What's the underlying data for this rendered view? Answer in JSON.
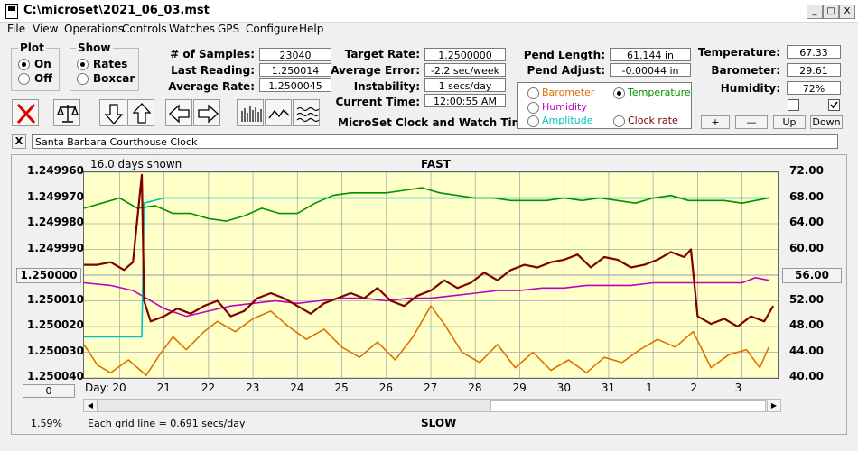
{
  "window": {
    "title": "C:\\microset\\2021_06_03.mst",
    "minimize": "_",
    "maximize": "□",
    "close": "X"
  },
  "menu": [
    "File",
    "View",
    "Operations",
    "Controls",
    "Watches",
    "GPS",
    "Configure",
    "Help"
  ],
  "plot_group": {
    "label": "Plot",
    "on": "On",
    "off": "Off",
    "selected": "On"
  },
  "show_group": {
    "label": "Show",
    "rates": "Rates",
    "boxcar": "Boxcar",
    "selected": "Rates"
  },
  "samples": {
    "num_samples_label": "# of Samples:",
    "num_samples": "23040",
    "last_reading_label": "Last Reading:",
    "last_reading": "1.250014",
    "average_rate_label": "Average Rate:",
    "average_rate": "1.2500045"
  },
  "rates": {
    "target_rate_label": "Target Rate:",
    "target_rate": "1.2500000",
    "average_error_label": "Average Error:",
    "average_error": "-2.2 sec/week",
    "instability_label": "Instability:",
    "instability": "1 secs/day",
    "current_time_label": "Current Time:",
    "current_time": "12:00:55 AM"
  },
  "app_label": "MicroSet Clock and Watch Timer",
  "pendulum": {
    "length_label": "Pend Length:",
    "length": "61.144 in",
    "adjust_label": "Pend Adjust:",
    "adjust": "-0.00044 in"
  },
  "overlay_options": {
    "barometer": "Barometer",
    "temperature": "Temperature",
    "humidity": "Humidity",
    "amplitude": "Amplitude",
    "clock_rate": "Clock rate",
    "selected": "Temperature",
    "colors": {
      "barometer": "#e07000",
      "temperature": "#009000",
      "humidity": "#c000c0",
      "amplitude": "#00c0c0",
      "clock_rate": "#800000"
    }
  },
  "environment": {
    "temperature_label": "Temperature:",
    "temperature": "67.33",
    "barometer_label": "Barometer:",
    "barometer": "29.61",
    "humidity_label": "Humidity:",
    "humidity": "72%",
    "checkbox1": false,
    "checkbox2": true
  },
  "adjust_buttons": {
    "plus": "+",
    "minus": "—",
    "up": "Up",
    "down": "Down"
  },
  "clock_name": {
    "clear": "X",
    "value": "Santa Barbara Courthouse Clock"
  },
  "chart_data": {
    "type": "line",
    "days_shown": "16.0 days shown",
    "top_label": "FAST",
    "bottom_label": "SLOW",
    "footer": "Each grid line = 0.691 secs/day",
    "percent": "1.59%",
    "left_axis": {
      "ticks": [
        "1.249960",
        "1.249970",
        "1.249980",
        "1.249990",
        "1.250000",
        "1.250010",
        "1.250020",
        "1.250030",
        "1.250040"
      ],
      "range": [
        1.24996,
        1.25004
      ],
      "center_button": "1.250000"
    },
    "right_axis": {
      "ticks": [
        "72.00",
        "68.00",
        "64.00",
        "60.00",
        "56.00",
        "52.00",
        "48.00",
        "44.00",
        "40.00"
      ],
      "range": [
        40,
        72
      ],
      "center_button": "56.00"
    },
    "x_axis": {
      "label": "Day:",
      "days": [
        "20",
        "21",
        "22",
        "23",
        "24",
        "25",
        "26",
        "27",
        "28",
        "29",
        "30",
        "31",
        "1",
        "2",
        "3"
      ],
      "range": [
        19.2,
        34.8
      ]
    },
    "left_button": "0",
    "series": [
      {
        "color": "#e07000",
        "points": [
          [
            19.2,
            1.250027
          ],
          [
            19.5,
            1.250035
          ],
          [
            19.8,
            1.250038
          ],
          [
            20.2,
            1.250033
          ],
          [
            20.6,
            1.250039
          ],
          [
            20.9,
            1.250031
          ],
          [
            21.2,
            1.250024
          ],
          [
            21.5,
            1.250029
          ],
          [
            21.9,
            1.250022
          ],
          [
            22.2,
            1.250018
          ],
          [
            22.6,
            1.250022
          ],
          [
            23.0,
            1.250017
          ],
          [
            23.4,
            1.250014
          ],
          [
            23.8,
            1.25002
          ],
          [
            24.2,
            1.250025
          ],
          [
            24.6,
            1.250021
          ],
          [
            25.0,
            1.250028
          ],
          [
            25.4,
            1.250032
          ],
          [
            25.8,
            1.250026
          ],
          [
            26.2,
            1.250033
          ],
          [
            26.6,
            1.250024
          ],
          [
            27.0,
            1.250012
          ],
          [
            27.3,
            1.250019
          ],
          [
            27.7,
            1.25003
          ],
          [
            28.1,
            1.250034
          ],
          [
            28.5,
            1.250027
          ],
          [
            28.9,
            1.250036
          ],
          [
            29.3,
            1.25003
          ],
          [
            29.7,
            1.250037
          ],
          [
            30.1,
            1.250033
          ],
          [
            30.5,
            1.250038
          ],
          [
            30.9,
            1.250032
          ],
          [
            31.3,
            1.250034
          ],
          [
            31.7,
            1.250029
          ],
          [
            32.1,
            1.250025
          ],
          [
            32.5,
            1.250028
          ],
          [
            32.9,
            1.250022
          ],
          [
            33.3,
            1.250036
          ],
          [
            33.7,
            1.250031
          ],
          [
            34.1,
            1.250029
          ],
          [
            34.4,
            1.250036
          ],
          [
            34.6,
            1.250028
          ]
        ]
      },
      {
        "color": "#c000c0",
        "points": [
          [
            19.2,
            1.250003
          ],
          [
            19.8,
            1.250004
          ],
          [
            20.3,
            1.250006
          ],
          [
            20.6,
            1.250009
          ],
          [
            21.0,
            1.250013
          ],
          [
            21.5,
            1.250016
          ],
          [
            22.0,
            1.250014
          ],
          [
            22.5,
            1.250012
          ],
          [
            23.0,
            1.250011
          ],
          [
            23.5,
            1.25001
          ],
          [
            24.0,
            1.250011
          ],
          [
            24.5,
            1.25001
          ],
          [
            25.0,
            1.250009
          ],
          [
            25.5,
            1.250009
          ],
          [
            26.0,
            1.25001
          ],
          [
            26.5,
            1.250009
          ],
          [
            27.0,
            1.250009
          ],
          [
            27.5,
            1.250008
          ],
          [
            28.0,
            1.250007
          ],
          [
            28.5,
            1.250006
          ],
          [
            29.0,
            1.250006
          ],
          [
            29.5,
            1.250005
          ],
          [
            30.0,
            1.250005
          ],
          [
            30.5,
            1.250004
          ],
          [
            31.0,
            1.250004
          ],
          [
            31.5,
            1.250004
          ],
          [
            32.0,
            1.250003
          ],
          [
            32.5,
            1.250003
          ],
          [
            33.0,
            1.250003
          ],
          [
            33.5,
            1.250003
          ],
          [
            34.0,
            1.250003
          ],
          [
            34.3,
            1.250001
          ],
          [
            34.6,
            1.250002
          ]
        ]
      },
      {
        "color": "#00c0c0",
        "points": [
          [
            19.2,
            1.250024
          ],
          [
            20.5,
            1.250024
          ],
          [
            20.55,
            1.249972
          ],
          [
            21.0,
            1.24997
          ],
          [
            22.0,
            1.24997
          ],
          [
            23.0,
            1.24997
          ],
          [
            24.0,
            1.24997
          ],
          [
            25.0,
            1.24997
          ],
          [
            26.0,
            1.24997
          ],
          [
            27.0,
            1.24997
          ],
          [
            28.0,
            1.24997
          ],
          [
            29.0,
            1.24997
          ],
          [
            30.0,
            1.24997
          ],
          [
            31.0,
            1.24997
          ],
          [
            32.0,
            1.24997
          ],
          [
            33.0,
            1.24997
          ],
          [
            34.0,
            1.24997
          ],
          [
            34.6,
            1.24997
          ]
        ]
      },
      {
        "color": "#009000",
        "points": [
          [
            19.2,
            1.249974
          ],
          [
            19.6,
            1.249972
          ],
          [
            20.0,
            1.24997
          ],
          [
            20.4,
            1.249974
          ],
          [
            20.8,
            1.249973
          ],
          [
            21.2,
            1.249976
          ],
          [
            21.6,
            1.249976
          ],
          [
            22.0,
            1.249978
          ],
          [
            22.4,
            1.249979
          ],
          [
            22.8,
            1.249977
          ],
          [
            23.2,
            1.249974
          ],
          [
            23.6,
            1.249976
          ],
          [
            24.0,
            1.249976
          ],
          [
            24.4,
            1.249972
          ],
          [
            24.8,
            1.249969
          ],
          [
            25.2,
            1.249968
          ],
          [
            25.6,
            1.249968
          ],
          [
            26.0,
            1.249968
          ],
          [
            26.4,
            1.249967
          ],
          [
            26.8,
            1.249966
          ],
          [
            27.2,
            1.249968
          ],
          [
            27.6,
            1.249969
          ],
          [
            28.0,
            1.24997
          ],
          [
            28.4,
            1.24997
          ],
          [
            28.8,
            1.249971
          ],
          [
            29.2,
            1.249971
          ],
          [
            29.6,
            1.249971
          ],
          [
            30.0,
            1.24997
          ],
          [
            30.4,
            1.249971
          ],
          [
            30.8,
            1.24997
          ],
          [
            31.2,
            1.249971
          ],
          [
            31.6,
            1.249972
          ],
          [
            32.0,
            1.24997
          ],
          [
            32.4,
            1.249969
          ],
          [
            32.8,
            1.249971
          ],
          [
            33.2,
            1.249971
          ],
          [
            33.6,
            1.249971
          ],
          [
            34.0,
            1.249972
          ],
          [
            34.3,
            1.249971
          ],
          [
            34.6,
            1.24997
          ]
        ]
      },
      {
        "color": "#800000",
        "points": [
          [
            19.2,
            1.249996
          ],
          [
            19.5,
            1.249996
          ],
          [
            19.8,
            1.249995
          ],
          [
            20.1,
            1.249998
          ],
          [
            20.3,
            1.249995
          ],
          [
            20.5,
            1.249961
          ],
          [
            20.55,
            1.25001
          ],
          [
            20.7,
            1.250018
          ],
          [
            21.0,
            1.250016
          ],
          [
            21.3,
            1.250013
          ],
          [
            21.6,
            1.250015
          ],
          [
            21.9,
            1.250012
          ],
          [
            22.2,
            1.25001
          ],
          [
            22.5,
            1.250016
          ],
          [
            22.8,
            1.250014
          ],
          [
            23.1,
            1.250009
          ],
          [
            23.4,
            1.250007
          ],
          [
            23.7,
            1.250009
          ],
          [
            24.0,
            1.250012
          ],
          [
            24.3,
            1.250015
          ],
          [
            24.6,
            1.250011
          ],
          [
            24.9,
            1.250009
          ],
          [
            25.2,
            1.250007
          ],
          [
            25.5,
            1.250009
          ],
          [
            25.8,
            1.250005
          ],
          [
            26.1,
            1.25001
          ],
          [
            26.4,
            1.250012
          ],
          [
            26.7,
            1.250008
          ],
          [
            27.0,
            1.250006
          ],
          [
            27.3,
            1.250002
          ],
          [
            27.6,
            1.250005
          ],
          [
            27.9,
            1.250003
          ],
          [
            28.2,
            1.249999
          ],
          [
            28.5,
            1.250002
          ],
          [
            28.8,
            1.249998
          ],
          [
            29.1,
            1.249996
          ],
          [
            29.4,
            1.249997
          ],
          [
            29.7,
            1.249995
          ],
          [
            30.0,
            1.249994
          ],
          [
            30.3,
            1.249992
          ],
          [
            30.6,
            1.249997
          ],
          [
            30.9,
            1.249993
          ],
          [
            31.2,
            1.249994
          ],
          [
            31.5,
            1.249997
          ],
          [
            31.8,
            1.249996
          ],
          [
            32.1,
            1.249994
          ],
          [
            32.4,
            1.249991
          ],
          [
            32.7,
            1.249993
          ],
          [
            32.85,
            1.24999
          ],
          [
            33.0,
            1.250016
          ],
          [
            33.3,
            1.250019
          ],
          [
            33.6,
            1.250017
          ],
          [
            33.9,
            1.25002
          ],
          [
            34.2,
            1.250016
          ],
          [
            34.5,
            1.250018
          ],
          [
            34.7,
            1.250012
          ]
        ]
      }
    ]
  }
}
